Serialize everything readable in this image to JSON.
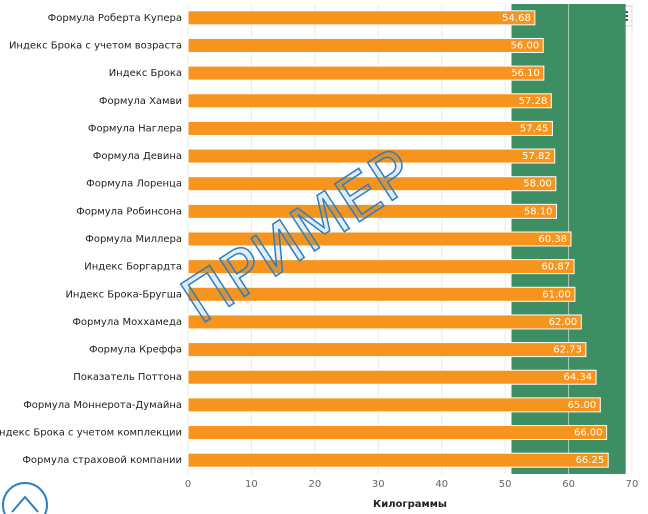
{
  "chart_data": {
    "type": "bar",
    "orientation": "horizontal",
    "categories": [
      "Формула Роберта Купера",
      "Индекс Брока с учетом возраста",
      "Индекс Брока",
      "Формула Хамви",
      "Формула Наглера",
      "Формула Девина",
      "Формула Лоренца",
      "Формула Робинсона",
      "Формула Миллера",
      "Индекс Боргардта",
      "Индекс Брока-Бругша",
      "Формула Моххамеда",
      "Формула Креффа",
      "Показатель Поттона",
      "Формула Моннерота-Думайна",
      "Индекс Брока с учетом комплекции",
      "Формула страховой компании"
    ],
    "values": [
      54.68,
      56.0,
      56.1,
      57.28,
      57.45,
      57.82,
      58.0,
      58.1,
      60.38,
      60.87,
      61.0,
      62.0,
      62.73,
      64.34,
      65.0,
      66.0,
      66.25
    ],
    "value_labels": [
      "54.68",
      "56.00",
      "56.10",
      "57.28",
      "57.45",
      "57.82",
      "58.00",
      "58.10",
      "60.38",
      "60.87",
      "61.00",
      "62.00",
      "62.73",
      "64.34",
      "65.00",
      "66.00",
      "66.25"
    ],
    "color": "#f7941d",
    "xlim": [
      0,
      70
    ],
    "xticks": [
      0,
      10,
      20,
      30,
      40,
      50,
      60,
      70
    ],
    "xlabel": "Килограммы",
    "plot_band": [
      51,
      69
    ],
    "plot_band_color": "#3e8e63",
    "grid": true,
    "watermark": "ПРИМЕР"
  }
}
